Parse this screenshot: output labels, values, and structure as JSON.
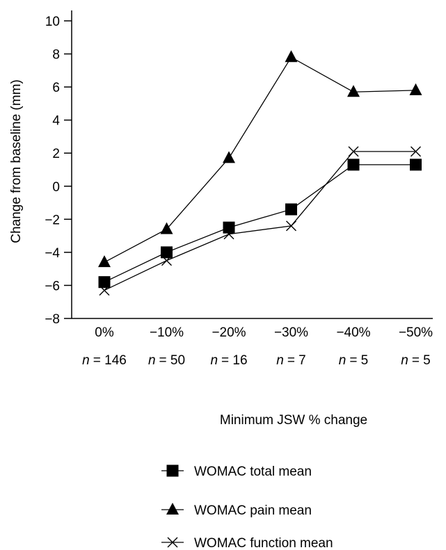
{
  "chart_data": {
    "type": "line",
    "title": "",
    "xlabel": "Minimum JSW % change",
    "ylabel": "Change from baseline (mm)",
    "ylim": [
      -8,
      10
    ],
    "yticks": [
      "10",
      "8",
      "6",
      "4",
      "2",
      "0",
      "−2",
      "−4",
      "−6",
      "−8"
    ],
    "ytick_values": [
      10,
      8,
      6,
      4,
      2,
      0,
      -2,
      -4,
      -6,
      -8
    ],
    "categories": [
      "0%",
      "−10%",
      "−20%",
      "−30%",
      "−40%",
      "−50%"
    ],
    "n_prefix": "n",
    "n_values": [
      "= 146",
      "= 50",
      "= 16",
      "= 7",
      "= 5",
      "= 5"
    ],
    "grid": false,
    "legend_position": "bottom",
    "series": [
      {
        "name": "WOMAC total mean",
        "marker": "square",
        "values": [
          -5.8,
          -4.0,
          -2.5,
          -1.4,
          1.3,
          1.3
        ]
      },
      {
        "name": "WOMAC pain mean",
        "marker": "triangle",
        "values": [
          -4.6,
          -2.6,
          1.7,
          7.8,
          5.7,
          5.8
        ]
      },
      {
        "name": "WOMAC function mean",
        "marker": "cross",
        "values": [
          -6.3,
          -4.5,
          -2.9,
          -2.4,
          2.1,
          2.1
        ]
      }
    ]
  }
}
